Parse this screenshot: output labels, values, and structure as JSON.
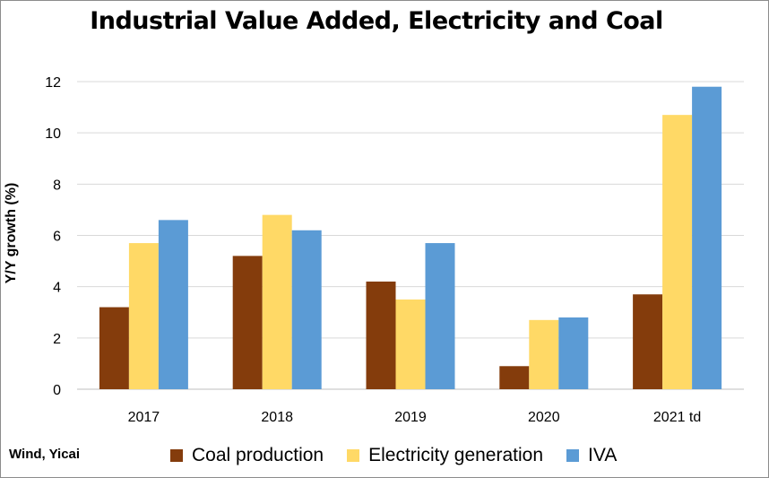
{
  "chart_data": {
    "type": "bar",
    "title": "Industrial Value Added, Electricity and Coal",
    "xlabel": "",
    "ylabel": "Y/Y growth (%)",
    "categories": [
      "2017",
      "2018",
      "2019",
      "2020",
      "2021 td"
    ],
    "ylim": [
      0,
      12
    ],
    "yticks": [
      0,
      2,
      4,
      6,
      8,
      10,
      12
    ],
    "grid": true,
    "legend_position": "bottom",
    "series": [
      {
        "name": "Coal production",
        "color": "#843C0C",
        "values": [
          3.2,
          5.2,
          4.2,
          0.9,
          3.7
        ]
      },
      {
        "name": "Electricity generation",
        "color": "#FFD966",
        "values": [
          5.7,
          6.8,
          3.5,
          2.7,
          10.7
        ]
      },
      {
        "name": "IVA",
        "color": "#5B9BD5",
        "values": [
          6.6,
          6.2,
          5.7,
          2.8,
          11.8
        ]
      }
    ]
  },
  "source": "Wind, Yicai"
}
